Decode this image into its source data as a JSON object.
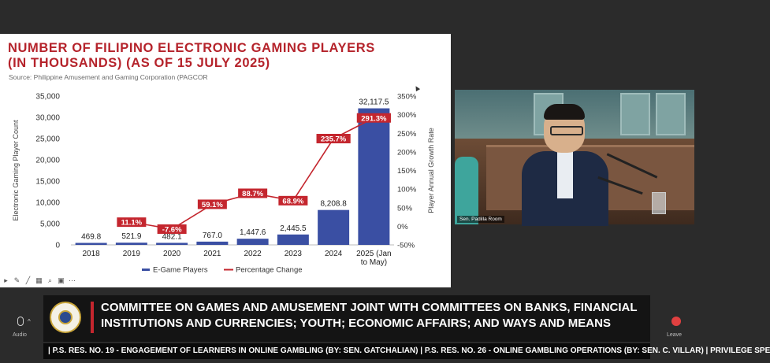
{
  "slide": {
    "title_line1": "NUMBER OF FILIPINO ELECTRONIC GAMING PLAYERS",
    "title_line2": "(IN THOUSANDS)  (AS OF 15 JULY 2025)",
    "source": "Source: Philippine Amusement and Gaming Corporation (PAGCOR"
  },
  "chart_data": {
    "type": "bar",
    "categories": [
      "2018",
      "2019",
      "2020",
      "2021",
      "2022",
      "2023",
      "2024",
      "2025 (Jan|to May)"
    ],
    "series": [
      {
        "name": "E-Game Players",
        "type": "bar",
        "axis": "left",
        "color": "#3a4fa3",
        "values": [
          469.8,
          521.9,
          482.1,
          767.0,
          1447.6,
          2445.5,
          8208.8,
          32117.5
        ],
        "labels": [
          "469.8",
          "521.9",
          "482.1",
          "767.0",
          "1,447.6",
          "2,445.5",
          "8,208.8",
          "32,117.5"
        ]
      },
      {
        "name": "Percentage Change",
        "type": "line",
        "axis": "right",
        "color": "#c4262e",
        "values": [
          null,
          11.1,
          -7.6,
          59.1,
          88.7,
          68.9,
          235.7,
          291.3
        ],
        "labels": [
          "",
          "11.1%",
          "-7.6%",
          "59.1%",
          "88.7%",
          "68.9%",
          "235.7%",
          "291.3%"
        ]
      }
    ],
    "ylabel": "Electronic Gaming Player Count",
    "ylabel_right": "Player Annual Growth Rate",
    "ylim": [
      0,
      35000
    ],
    "ylim_right": [
      -50,
      350
    ],
    "yticks": [
      0,
      5000,
      10000,
      15000,
      20000,
      25000,
      30000,
      35000
    ],
    "ytick_labels": [
      "0",
      "5,000",
      "10,000",
      "15,000",
      "20,000",
      "25,000",
      "30,000",
      "35,000"
    ],
    "yticks_right": [
      -50,
      0,
      50,
      100,
      150,
      200,
      250,
      300,
      350
    ],
    "ytick_labels_right": [
      "-50%",
      "0%",
      "50%",
      "100%",
      "150%",
      "200%",
      "250%",
      "300%",
      "350%"
    ],
    "grid": false,
    "legend": "bottom"
  },
  "video": {
    "label": "Sen. Padilla Room"
  },
  "lower_third": {
    "line1": "COMMITTEE ON GAMES AND AMUSEMENT JOINT WITH COMMITTEES ON BANKS, FINANCIAL",
    "line2": "INSTITUTIONS AND CURRENCIES; YOUTH; ECONOMIC AFFAIRS; AND WAYS AND MEANS"
  },
  "ticker": {
    "text": "| P.S. RES. NO. 19 - ENGAGEMENT OF LEARNERS IN ONLINE GAMBLING (BY: SEN. GATCHALIAN)  |  P.S. RES. NO. 26 - ONLINE GAMBLING OPERATIONS (BY: SEN. C. VILLAR)  |  PRIVILEGE SPE"
  },
  "controls": {
    "audio_label": "Audio",
    "leave_label": "Leave"
  },
  "colors": {
    "bar": "#3a4fa3",
    "line": "#c4262e",
    "title": "#b5232b"
  }
}
